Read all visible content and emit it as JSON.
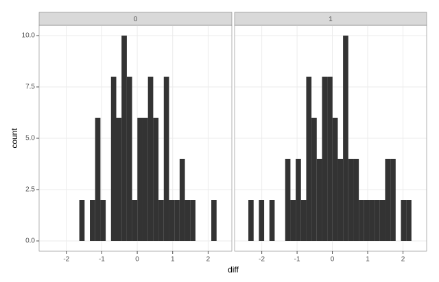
{
  "chart_data": {
    "type": "histogram",
    "xlabel": "diff",
    "ylabel": "count",
    "color": "#333333",
    "grid": true,
    "xlim": [
      -2.77,
      2.67
    ],
    "ylim": [
      -0.5,
      10.5
    ],
    "xticks": [
      -2,
      -1,
      0,
      1,
      2
    ],
    "yticks": [
      {
        "value": 0,
        "label": "0.0"
      },
      {
        "value": 2.5,
        "label": "2.5"
      },
      {
        "value": 5,
        "label": "5.0"
      },
      {
        "value": 7.5,
        "label": "7.5"
      },
      {
        "value": 10,
        "label": "10.0"
      }
    ],
    "bins": [
      -2.38,
      -2.231,
      -2.082,
      -1.933,
      -1.784,
      -1.635,
      -1.486,
      -1.337,
      -1.188,
      -1.039,
      -0.89,
      -0.741,
      -0.592,
      -0.443,
      -0.294,
      -0.145,
      0.004,
      0.153,
      0.302,
      0.451,
      0.6,
      0.749,
      0.898,
      1.047,
      1.196,
      1.345,
      1.494,
      1.643,
      1.792,
      1.941,
      2.09,
      2.239
    ],
    "facets": [
      {
        "title": "0",
        "counts": [
          0,
          0,
          0,
          0,
          0,
          2,
          0,
          2,
          6,
          2,
          0,
          8,
          6,
          10,
          8,
          2,
          6,
          6,
          8,
          6,
          2,
          8,
          2,
          2,
          4,
          2,
          2,
          0,
          0,
          0,
          2
        ]
      },
      {
        "title": "1",
        "counts": [
          2,
          0,
          2,
          0,
          2,
          0,
          0,
          4,
          2,
          4,
          2,
          8,
          6,
          4,
          8,
          8,
          6,
          4,
          10,
          4,
          4,
          2,
          2,
          2,
          2,
          2,
          4,
          4,
          0,
          2,
          2
        ]
      }
    ]
  }
}
